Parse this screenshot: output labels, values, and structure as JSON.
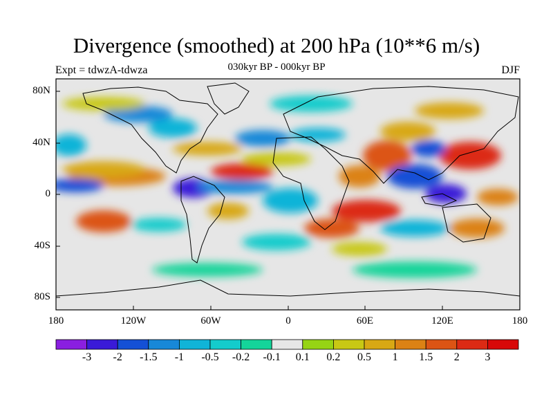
{
  "title": "Divergence (smoothed) at 200 hPa (10**6 m/s)",
  "subtitle": "030kyr BP - 000kyr BP",
  "experiment_label": "Expt = tdwzA-tdwza",
  "season_label": "DJF",
  "lat_labels": [
    "80N",
    "40N",
    "0",
    "40S",
    "80S"
  ],
  "lon_labels": [
    "180",
    "120W",
    "60W",
    "0",
    "60E",
    "120E",
    "180"
  ],
  "colorbar": {
    "labels": [
      "-3",
      "-2",
      "-1.5",
      "-1",
      "-0.5",
      "-0.2",
      "-0.1",
      "0.1",
      "0.2",
      "0.5",
      "1",
      "1.5",
      "2",
      "3"
    ],
    "colors": [
      "#8a1fe0",
      "#3a1ad8",
      "#1450d6",
      "#1888d8",
      "#10b4d8",
      "#14cccc",
      "#14d49a",
      "#e6e6e6",
      "#96d414",
      "#c8c814",
      "#d8a814",
      "#dc8214",
      "#dc5414",
      "#dc2a14",
      "#d80808"
    ]
  },
  "palette": {
    "neutral": "#e6e6e6",
    "pos1": "#96d414",
    "pos2": "#c8c814",
    "pos3": "#d8a814",
    "pos4": "#dc8214",
    "pos5": "#dc5414",
    "pos6": "#dc2a14",
    "neg1": "#14d49a",
    "neg2": "#14cccc",
    "neg3": "#10b4d8",
    "neg4": "#1888d8",
    "neg5": "#1450d6",
    "neg6": "#3a1ad8"
  }
}
